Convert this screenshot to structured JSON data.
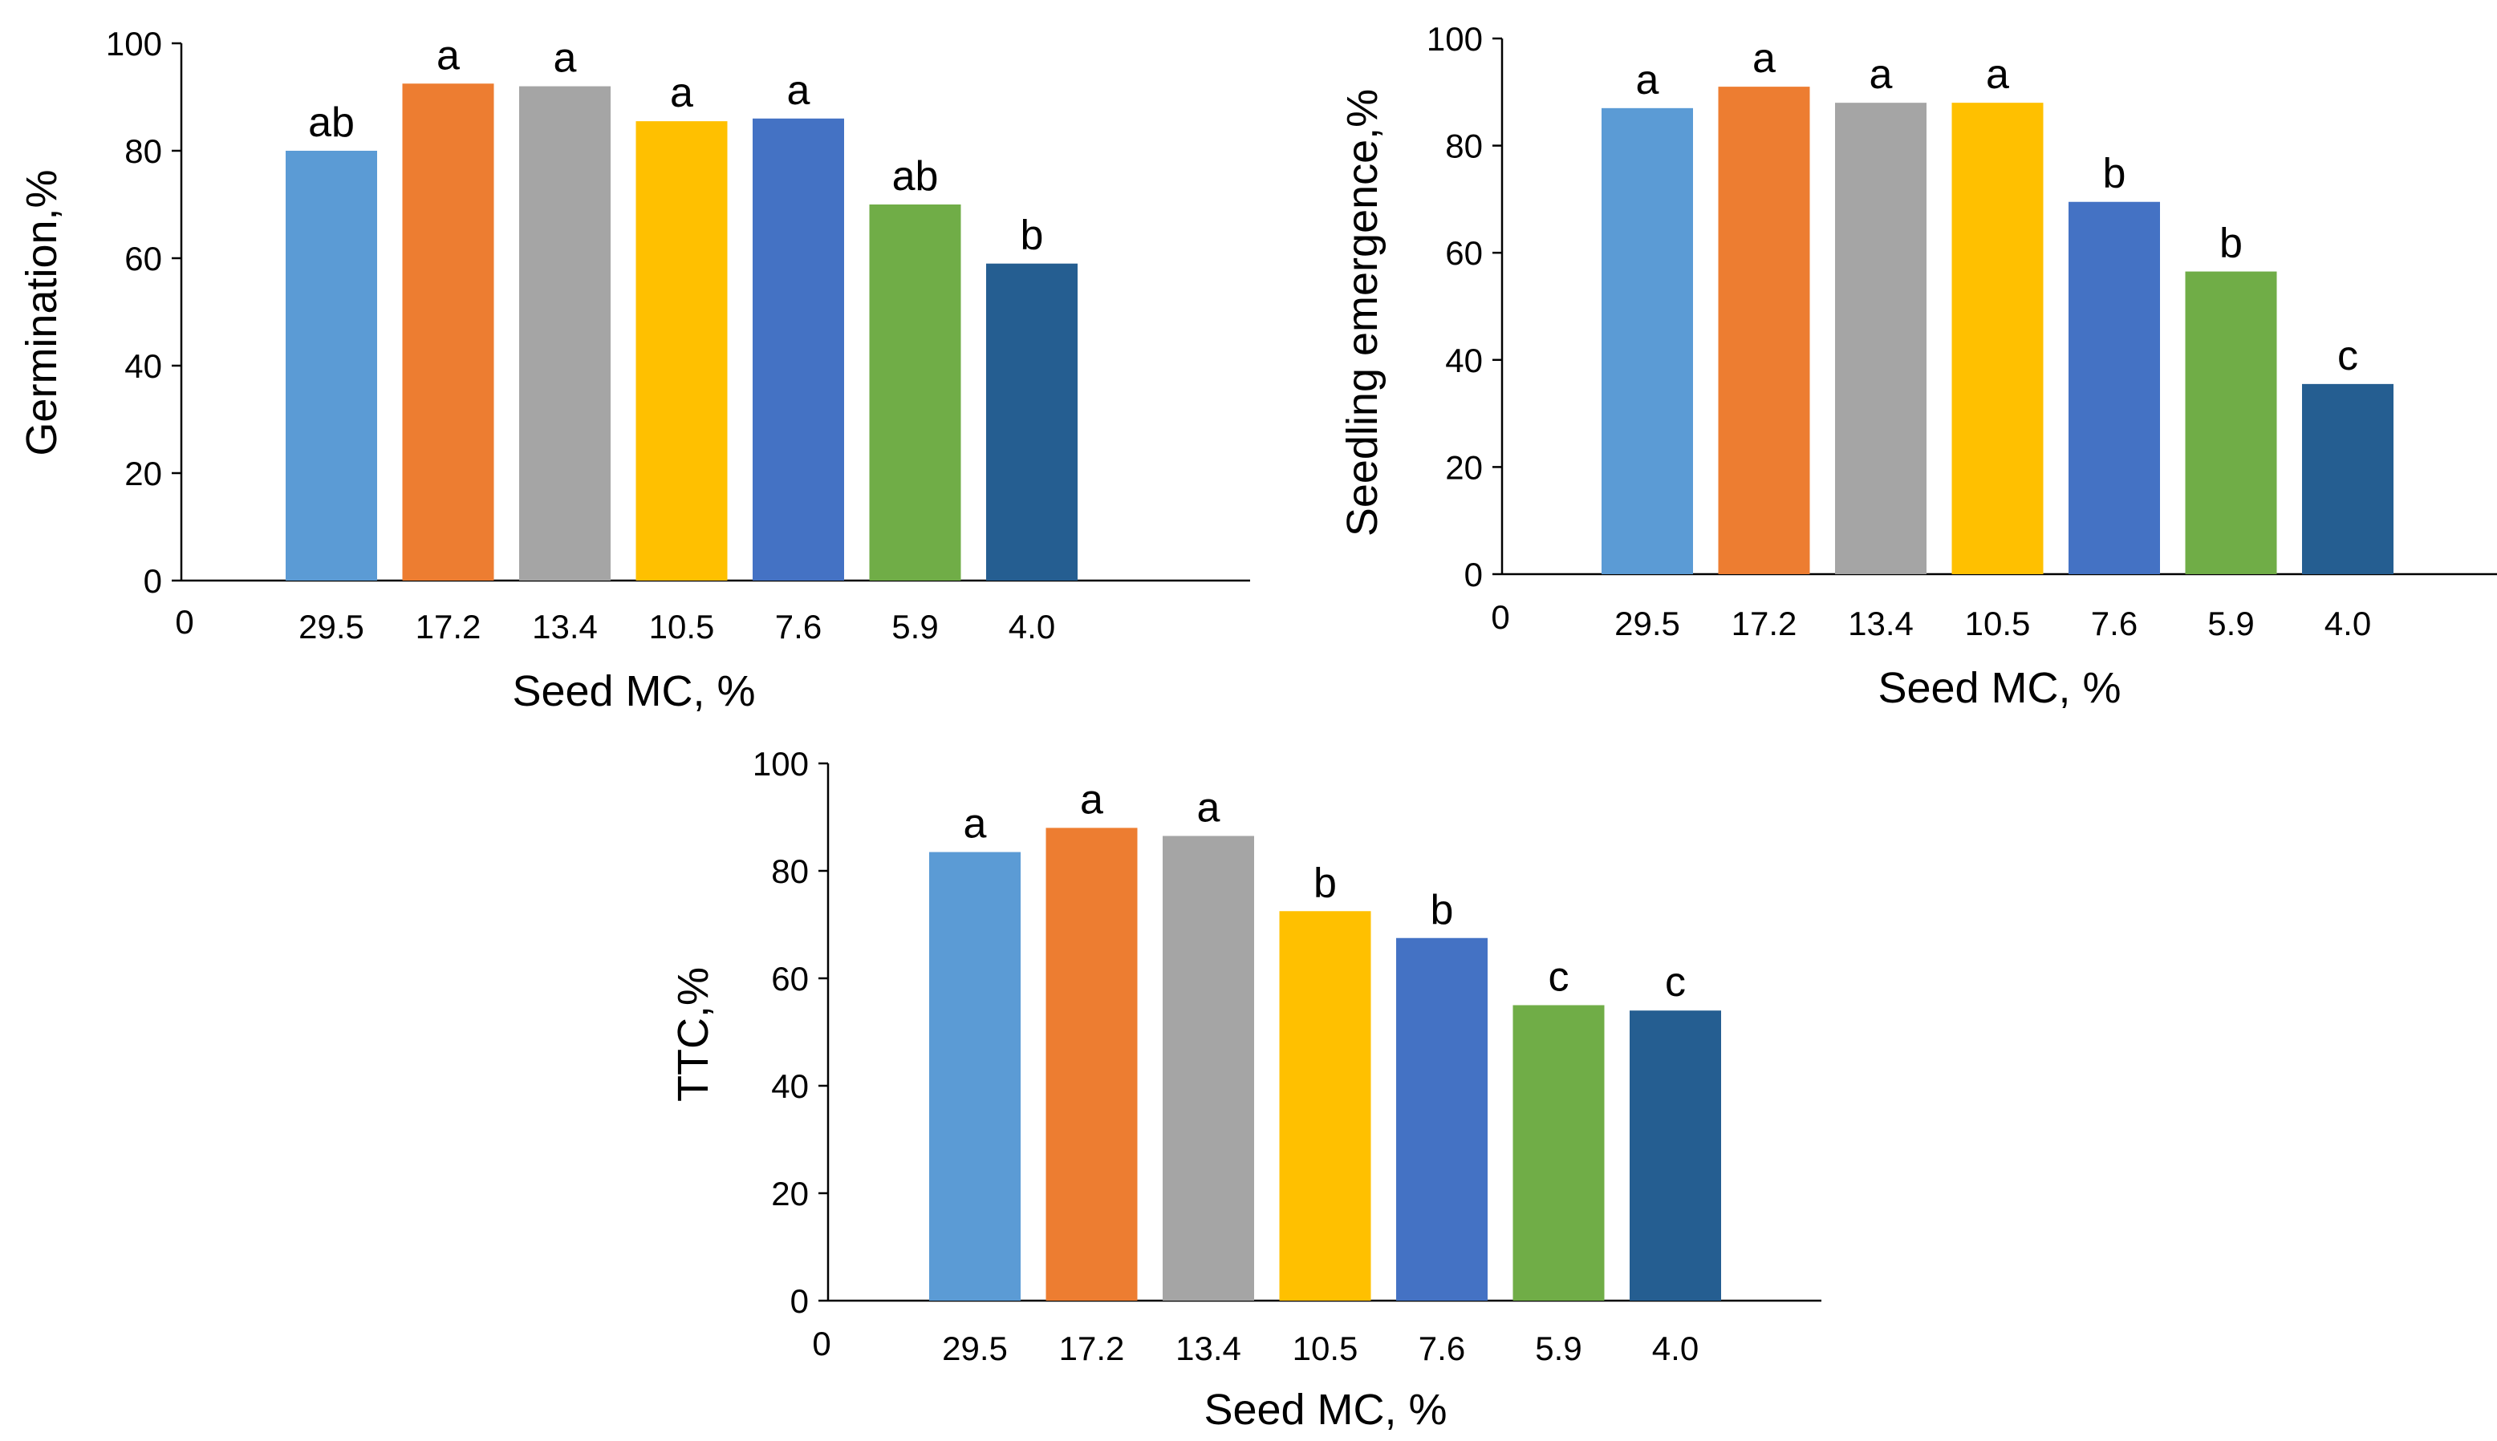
{
  "chart_data": [
    {
      "type": "bar",
      "categories": [
        "29.5",
        "17.2",
        "13.4",
        "10.5",
        "7.6",
        "5.9",
        "4.0"
      ],
      "values": [
        80,
        92.5,
        92,
        85.5,
        86,
        70,
        59
      ],
      "significance": [
        "ab",
        "a",
        "a",
        "a",
        "a",
        "ab",
        "b"
      ],
      "xlabel": "Seed MC, %",
      "ylabel": "Germination,%",
      "ylim": [
        0,
        100
      ],
      "yticks": [
        "0",
        "20",
        "40",
        "60",
        "80",
        "100"
      ],
      "origin_label": "0"
    },
    {
      "type": "bar",
      "categories": [
        "29.5",
        "17.2",
        "13.4",
        "10.5",
        "7.6",
        "5.9",
        "4.0"
      ],
      "values": [
        87,
        91,
        88,
        88,
        69.5,
        56.5,
        35.5
      ],
      "significance": [
        "a",
        "a",
        "a",
        "a",
        "b",
        "b",
        "c"
      ],
      "xlabel": "Seed MC, %",
      "ylabel": "Seedling emergence,%",
      "ylim": [
        0,
        100
      ],
      "yticks": [
        "0",
        "20",
        "40",
        "60",
        "80",
        "100"
      ],
      "origin_label": "0"
    },
    {
      "type": "bar",
      "categories": [
        "29.5",
        "17.2",
        "13.4",
        "10.5",
        "7.6",
        "5.9",
        "4.0"
      ],
      "values": [
        83.5,
        88,
        86.5,
        72.5,
        67.5,
        55,
        54
      ],
      "significance": [
        "a",
        "a",
        "a",
        "b",
        "b",
        "c",
        "c"
      ],
      "xlabel": "Seed MC, %",
      "ylabel": "TTC,%",
      "ylim": [
        0,
        100
      ],
      "yticks": [
        "0",
        "20",
        "40",
        "60",
        "80",
        "100"
      ],
      "origin_label": "0"
    }
  ],
  "colors": [
    "#5B9BD5",
    "#ED7D31",
    "#A5A5A5",
    "#FFC000",
    "#4472C4",
    "#70AD47",
    "#255E91"
  ]
}
